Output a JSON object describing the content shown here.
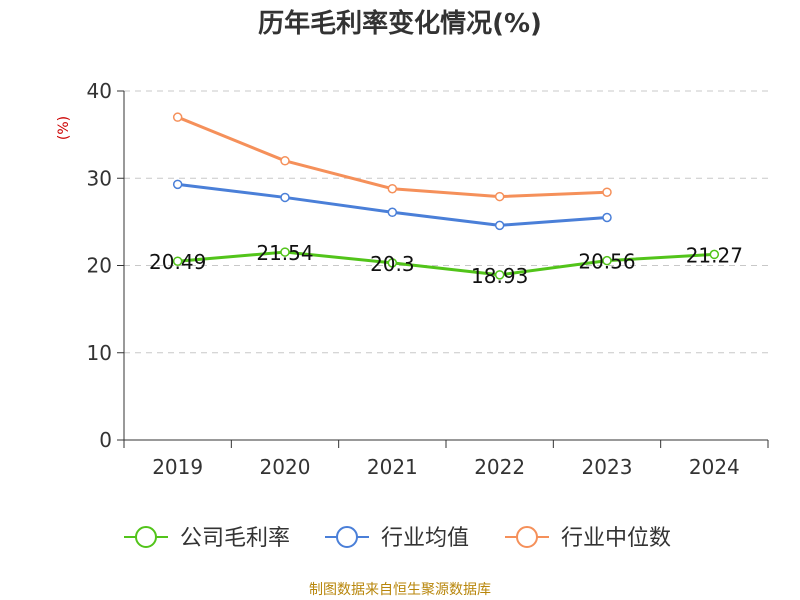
{
  "chart_data": {
    "type": "line",
    "title": "历年毛利率变化情况(%)",
    "unit_label": "(%)",
    "categories": [
      "2019",
      "2020",
      "2021",
      "2022",
      "2023",
      "2024"
    ],
    "ylim": [
      0,
      40
    ],
    "yticks": [
      "0",
      "10",
      "20",
      "30",
      "40"
    ],
    "grid": "horizontal-dashed",
    "legend_position": "bottom",
    "series": [
      {
        "name": "公司毛利率",
        "color": "#52c41a",
        "values": [
          20.49,
          21.54,
          20.3,
          18.93,
          20.56,
          21.27
        ],
        "labels": [
          "20.49",
          "21.54",
          "20.3",
          "18.93",
          "20.56",
          "21.27"
        ]
      },
      {
        "name": "行业均值",
        "color": "#4a7fd8",
        "values": [
          29.3,
          27.8,
          26.1,
          24.6,
          25.5,
          null
        ]
      },
      {
        "name": "行业中位数",
        "color": "#f5905a",
        "values": [
          37.0,
          32.0,
          28.8,
          27.9,
          28.4,
          null
        ]
      }
    ],
    "source": "制图数据来自恒生聚源数据库"
  }
}
